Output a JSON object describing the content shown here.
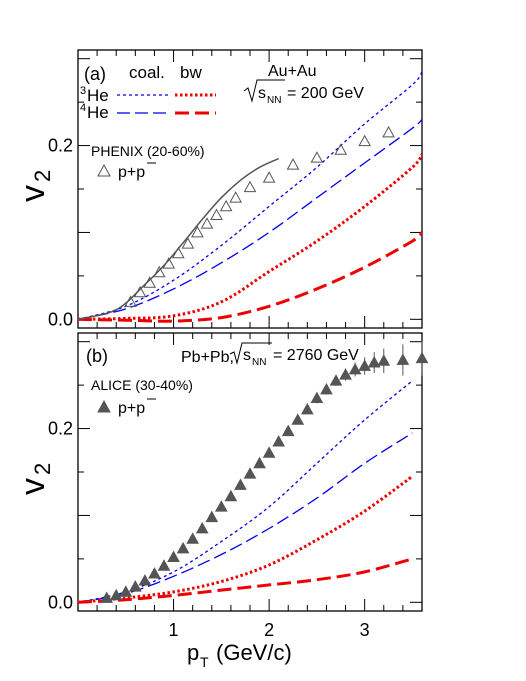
{
  "chart_data": [
    {
      "panel_label": "(a)",
      "type": "line",
      "system_label": "Au+Au",
      "energy_label": "= 200 GeV",
      "energy_symbol": "s",
      "energy_subscript": "NN",
      "header_coal": "coal.",
      "header_bw": "bw",
      "data_label": "PHENIX (20-60%)",
      "data_marker": "open-triangle",
      "data_species": "p+p",
      "ylabel": "v",
      "ylabel_sub": "2",
      "xlim": [
        0,
        3.6
      ],
      "ylim": [
        -0.01,
        0.31
      ],
      "yticks": [
        0.0,
        0.2
      ],
      "ytick_labels": [
        "0.0",
        "0.2"
      ],
      "legend_rows": [
        {
          "label": "He",
          "mass": "3",
          "color": "#0000ee"
        },
        {
          "label": "He",
          "mass": "4",
          "color": "#0000ee"
        }
      ],
      "series": [
        {
          "name": "3He coal.",
          "color": "#0000ee",
          "style": "short-dash",
          "x": [
            0,
            0.5,
            1.0,
            1.5,
            2.0,
            2.5,
            3.0,
            3.5,
            3.6
          ],
          "y": [
            0,
            0.015,
            0.045,
            0.085,
            0.13,
            0.175,
            0.225,
            0.27,
            0.285
          ]
        },
        {
          "name": "4He coal.",
          "color": "#0000ee",
          "style": "long-dash",
          "x": [
            0,
            0.5,
            1.0,
            1.5,
            2.0,
            2.5,
            3.0,
            3.5,
            3.6
          ],
          "y": [
            0,
            0.012,
            0.035,
            0.065,
            0.1,
            0.14,
            0.18,
            0.22,
            0.23
          ]
        },
        {
          "name": "3He bw",
          "color": "#ee0000",
          "style": "dot",
          "x": [
            0,
            0.5,
            1.0,
            1.5,
            2.0,
            2.5,
            3.0,
            3.5,
            3.6
          ],
          "y": [
            0,
            0.001,
            0.004,
            0.02,
            0.055,
            0.09,
            0.13,
            0.175,
            0.19
          ]
        },
        {
          "name": "4He bw",
          "color": "#ee0000",
          "style": "long-dash-thick",
          "x": [
            0,
            0.5,
            1.0,
            1.5,
            2.0,
            2.5,
            3.0,
            3.5,
            3.6
          ],
          "y": [
            0,
            -0.001,
            -0.002,
            0.002,
            0.015,
            0.035,
            0.06,
            0.09,
            0.1
          ]
        },
        {
          "name": "fit",
          "color": "#555555",
          "style": "solid",
          "x": [
            0,
            0.4,
            0.7,
            0.9,
            1.1,
            1.3,
            1.5,
            1.7,
            1.9,
            2.1
          ],
          "y": [
            0,
            0.011,
            0.04,
            0.062,
            0.088,
            0.115,
            0.14,
            0.16,
            0.175,
            0.185
          ]
        }
      ],
      "points": {
        "x": [
          0.55,
          0.65,
          0.75,
          0.85,
          0.95,
          1.05,
          1.15,
          1.25,
          1.35,
          1.45,
          1.55,
          1.65,
          1.8,
          2.0,
          2.25,
          2.5,
          2.75,
          3.0,
          3.25
        ],
        "y": [
          0.02,
          0.031,
          0.042,
          0.054,
          0.064,
          0.076,
          0.087,
          0.1,
          0.11,
          0.12,
          0.13,
          0.14,
          0.152,
          0.163,
          0.178,
          0.186,
          0.195,
          0.205,
          0.215
        ]
      }
    },
    {
      "panel_label": "(b)",
      "type": "line",
      "system_label": "Pb+Pb,",
      "energy_label": "= 2760 GeV",
      "energy_symbol": "s",
      "energy_subscript": "NN",
      "data_label": "ALICE (30-40%)",
      "data_marker": "filled-triangle",
      "data_species": "p+p",
      "ylabel": "v",
      "ylabel_sub": "2",
      "xlabel": "(GeV/c)",
      "xlabel_symbol": "p",
      "xlabel_sub": "T",
      "xlim": [
        0,
        3.6
      ],
      "ylim": [
        -0.01,
        0.31
      ],
      "xticks": [
        1,
        2,
        3
      ],
      "xtick_labels": [
        "1",
        "2",
        "3"
      ],
      "yticks": [
        0.0,
        0.2
      ],
      "ytick_labels": [
        "0.0",
        "0.2"
      ],
      "series": [
        {
          "name": "3He coal.",
          "color": "#0000ee",
          "style": "short-dash",
          "x": [
            0,
            0.5,
            1.0,
            1.5,
            2.0,
            2.5,
            3.0,
            3.5
          ],
          "y": [
            0,
            0.012,
            0.035,
            0.07,
            0.11,
            0.16,
            0.21,
            0.255
          ]
        },
        {
          "name": "4He coal.",
          "color": "#0000ee",
          "style": "long-dash",
          "x": [
            0,
            0.5,
            1.0,
            1.5,
            2.0,
            2.5,
            3.0,
            3.5
          ],
          "y": [
            0,
            0.01,
            0.03,
            0.055,
            0.085,
            0.12,
            0.16,
            0.195
          ]
        },
        {
          "name": "3He bw",
          "color": "#ee0000",
          "style": "dot",
          "x": [
            0,
            0.5,
            1.0,
            1.5,
            2.0,
            2.5,
            3.0,
            3.5
          ],
          "y": [
            0,
            0.005,
            0.012,
            0.024,
            0.043,
            0.072,
            0.105,
            0.145
          ]
        },
        {
          "name": "4He bw",
          "color": "#ee0000",
          "style": "long-dash-thick",
          "x": [
            0,
            0.5,
            1.0,
            1.5,
            2.0,
            2.5,
            3.0,
            3.5
          ],
          "y": [
            0,
            0.003,
            0.008,
            0.014,
            0.02,
            0.026,
            0.035,
            0.05
          ]
        }
      ],
      "points": {
        "x": [
          0.3,
          0.4,
          0.5,
          0.6,
          0.7,
          0.8,
          0.9,
          1.0,
          1.1,
          1.2,
          1.3,
          1.4,
          1.5,
          1.6,
          1.7,
          1.8,
          1.9,
          2.0,
          2.1,
          2.2,
          2.3,
          2.4,
          2.5,
          2.6,
          2.7,
          2.8,
          2.9,
          3.0,
          3.1,
          3.2,
          3.4,
          3.6
        ],
        "y": [
          0.005,
          0.008,
          0.012,
          0.018,
          0.025,
          0.033,
          0.042,
          0.052,
          0.062,
          0.073,
          0.085,
          0.098,
          0.11,
          0.122,
          0.135,
          0.148,
          0.16,
          0.172,
          0.185,
          0.197,
          0.21,
          0.222,
          0.235,
          0.245,
          0.255,
          0.262,
          0.268,
          0.272,
          0.276,
          0.278,
          0.279,
          0.281
        ],
        "err": [
          0.003,
          0.003,
          0.003,
          0.003,
          0.003,
          0.003,
          0.003,
          0.003,
          0.003,
          0.003,
          0.003,
          0.003,
          0.003,
          0.003,
          0.003,
          0.003,
          0.003,
          0.003,
          0.003,
          0.004,
          0.004,
          0.005,
          0.006,
          0.006,
          0.006,
          0.007,
          0.008,
          0.01,
          0.012,
          0.014,
          0.018,
          0.02
        ]
      }
    }
  ]
}
